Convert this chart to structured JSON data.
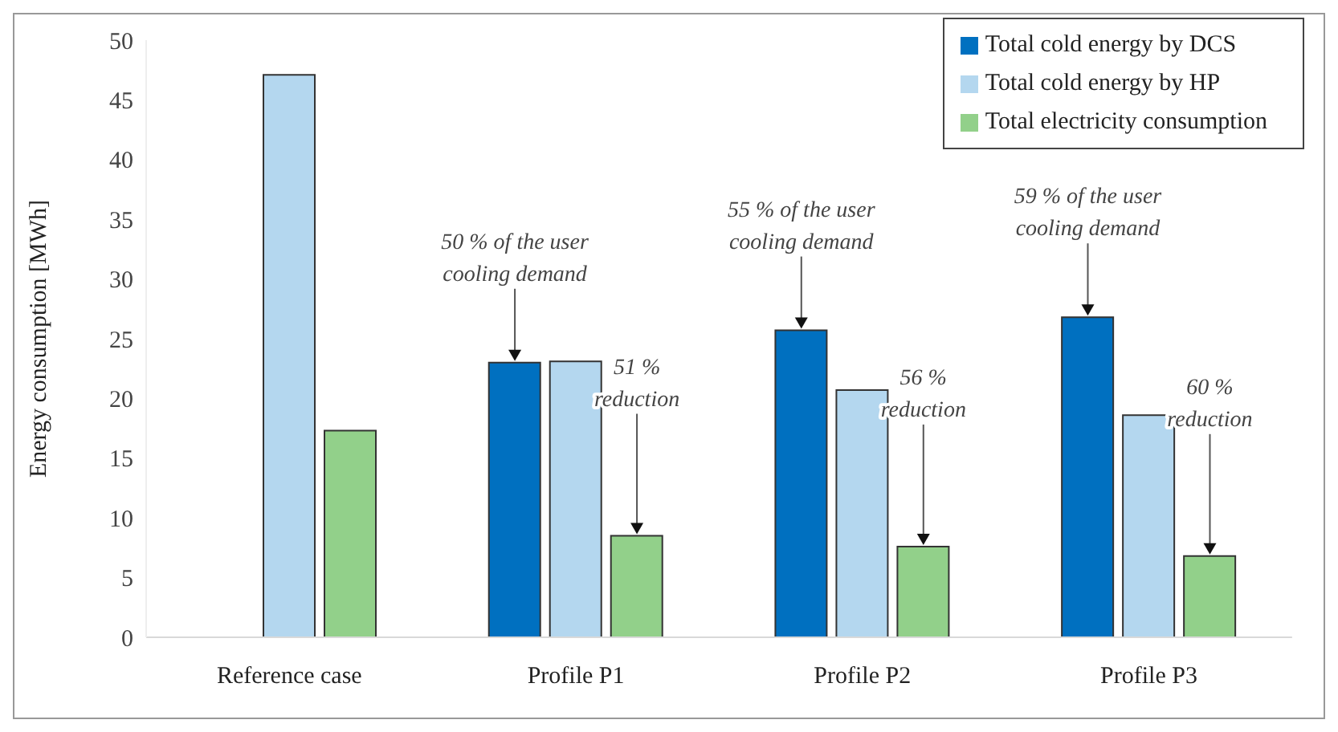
{
  "chart_data": {
    "type": "bar",
    "categories": [
      "Reference case",
      "Profile P1",
      "Profile P2",
      "Profile P3"
    ],
    "series": [
      {
        "name": "Total cold energy by DCS",
        "color": "#0070c0",
        "values": [
          null,
          23.0,
          25.7,
          26.8
        ]
      },
      {
        "name": "Total cold energy by HP",
        "color": "#b4d7ef",
        "values": [
          47.1,
          23.1,
          20.7,
          18.6
        ]
      },
      {
        "name": "Total electricity consumption",
        "color": "#92d08a",
        "values": [
          17.3,
          8.5,
          7.6,
          6.8
        ]
      }
    ],
    "ylabel": "Energy consumption [MWh]",
    "ylim": [
      0,
      50
    ],
    "yticks": [
      0,
      5,
      10,
      15,
      20,
      25,
      30,
      35,
      40,
      45,
      50
    ],
    "grid": false,
    "legend": "top right",
    "annotations": [
      {
        "text": "50 % of the user\ncooling demand",
        "y": 23.0
      },
      {
        "text": "51 %\nreduction",
        "y": 8.5
      },
      {
        "text": "55 % of the user\ncooling demand",
        "y": 25.7
      },
      {
        "text": "56 %\nreduction",
        "y": 7.6
      },
      {
        "text": "59 % of the user\ncooling demand",
        "y": 26.8
      },
      {
        "text": "60 %\nreduction",
        "y": 6.8
      }
    ]
  }
}
